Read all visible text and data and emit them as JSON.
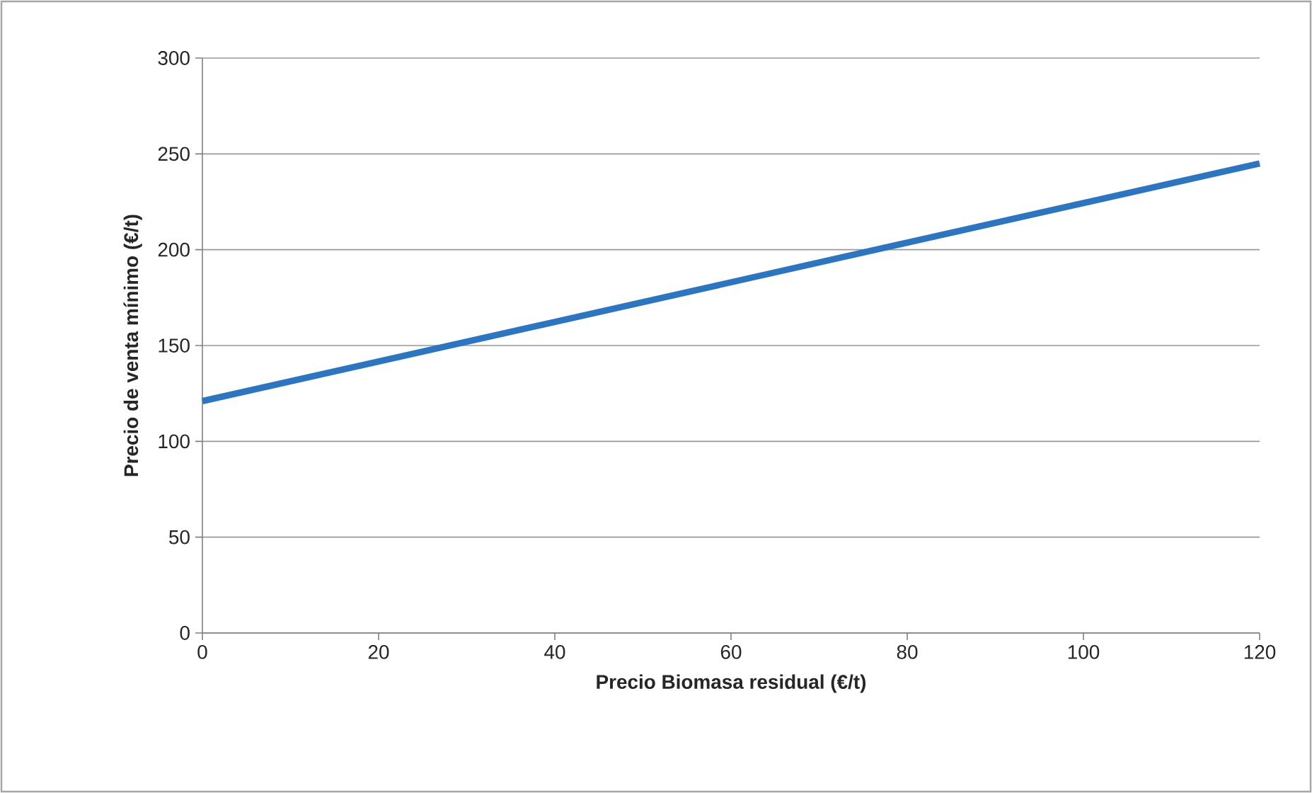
{
  "chart_data": {
    "type": "line",
    "xlabel": "Precio Biomasa residual (€/t)",
    "ylabel": "Precio de venta mínimo (€/t)",
    "x": [
      0,
      120
    ],
    "series": [
      {
        "color": "#2e75c0",
        "values": [
          121,
          245
        ]
      }
    ],
    "xlim": [
      0,
      120
    ],
    "xticks": [
      0,
      20,
      40,
      60,
      80,
      100,
      120
    ],
    "ylim": [
      0,
      300
    ],
    "yticks": [
      0,
      50,
      100,
      150,
      200,
      250,
      300
    ],
    "grid": "y",
    "marker": "none",
    "line_style": "solid"
  }
}
